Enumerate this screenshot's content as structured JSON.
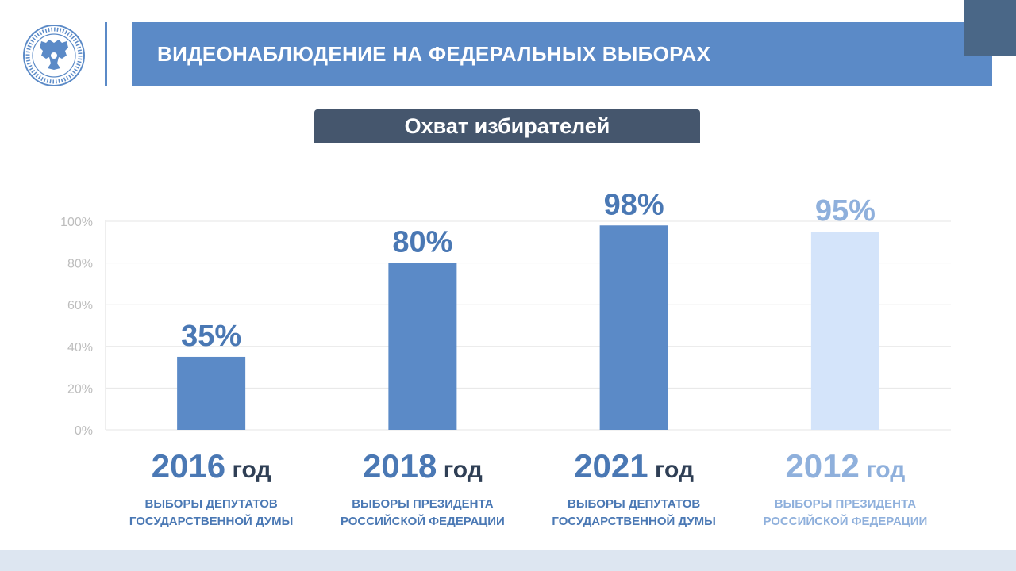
{
  "header": {
    "title": "ВИДЕОНАБЛЮДЕНИЕ НА ФЕДЕРАЛЬНЫХ ВЫБОРАХ",
    "emblem_icon": "cec-russia-emblem-icon"
  },
  "subtitle": "Охват избирателей",
  "colors": {
    "banner": "#5b8ac7",
    "subtitle_bg": "#45566d",
    "bar_main": "#5b8ac7",
    "bar_light": "#d4e4fa",
    "text_main": "#4a78b4",
    "text_light": "#8fb0dc",
    "text_dark": "#2f3f55"
  },
  "chart_data": {
    "type": "bar",
    "categories": [
      "2016",
      "2018",
      "2021",
      "2012"
    ],
    "values": [
      35,
      80,
      98,
      95
    ],
    "value_labels": [
      "35%",
      "80%",
      "98%",
      "95%"
    ],
    "highlight": [
      false,
      false,
      false,
      true
    ],
    "ylim": [
      0,
      100
    ],
    "yticks": [
      0,
      20,
      40,
      60,
      80,
      100
    ],
    "ytick_labels": [
      "0%",
      "20%",
      "40%",
      "60%",
      "80%",
      "100%"
    ],
    "grid": true,
    "legend": "none"
  },
  "categories_info": [
    {
      "year": "2016",
      "unit": " год",
      "line1": "ВЫБОРЫ ДЕПУТАТОВ",
      "line2": "ГОСУДАРСТВЕННОЙ ДУМЫ"
    },
    {
      "year": "2018",
      "unit": " год",
      "line1": "ВЫБОРЫ ПРЕЗИДЕНТА",
      "line2": "РОССИЙСКОЙ ФЕДЕРАЦИИ"
    },
    {
      "year": "2021",
      "unit": " год",
      "line1": "ВЫБОРЫ ДЕПУТАТОВ",
      "line2": "ГОСУДАРСТВЕННОЙ ДУМЫ"
    },
    {
      "year": "2012",
      "unit": " год",
      "line1": "ВЫБОРЫ ПРЕЗИДЕНТА",
      "line2": "РОССИЙСКОЙ ФЕДЕРАЦИИ"
    }
  ]
}
